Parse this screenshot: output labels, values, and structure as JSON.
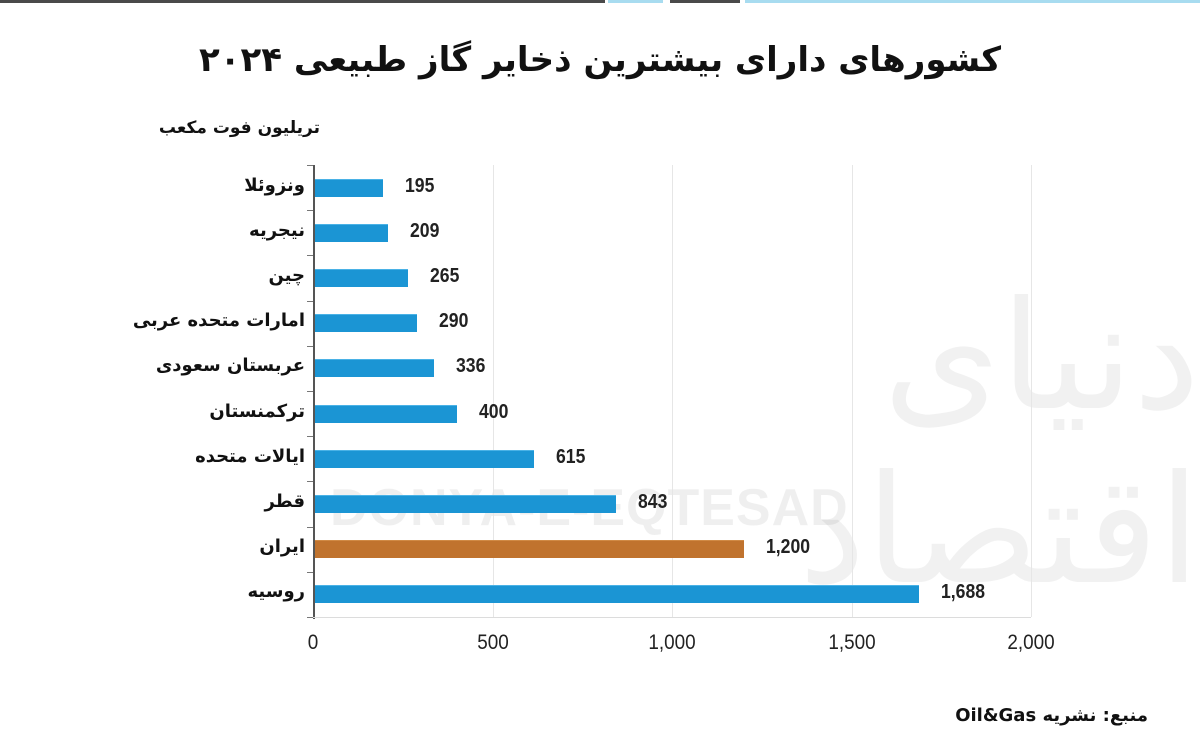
{
  "header": {
    "title": "کشورهای دارای بیشترین ذخایر گاز طبیعی ۲۰۲۴",
    "unit_label": "تریلیون فوت مکعب"
  },
  "colors": {
    "bar_default": "#1b95d4",
    "bar_highlight": "#c0732e",
    "gridline": "#e6e6e6",
    "axis": "#555555",
    "top_strip_dark": "#4a4a4a",
    "top_strip_light": "#a8dcf0"
  },
  "watermark": {
    "latin": "DONYA-E-EQTESAD",
    "persian": "دنیای اقتصاد"
  },
  "footer": {
    "source": "منبع: نشریه Oil&Gas"
  },
  "chart_data": {
    "type": "bar",
    "orientation": "horizontal",
    "title": "کشورهای دارای بیشترین ذخایر گاز طبیعی ۲۰۲۴",
    "xlabel": "",
    "ylabel": "تریلیون فوت مکعب",
    "xlim": [
      0,
      2000
    ],
    "x_ticks": [
      "0",
      "500",
      "1,000",
      "1,500",
      "2,000"
    ],
    "grid": "vertical",
    "legend": "none",
    "categories": [
      "ونزوئلا",
      "نیجریه",
      "چین",
      "امارات متحده عربی",
      "عربستان سعودی",
      "ترکمنستان",
      "ایالات متحده",
      "قطر",
      "ایران",
      "روسیه"
    ],
    "values": [
      195,
      209,
      265,
      290,
      336,
      400,
      615,
      843,
      1200,
      1688
    ],
    "value_labels": [
      "195",
      "209",
      "265",
      "290",
      "336",
      "400",
      "615",
      "843",
      "1,200",
      "1,688"
    ],
    "highlight": [
      "ایران"
    ]
  }
}
